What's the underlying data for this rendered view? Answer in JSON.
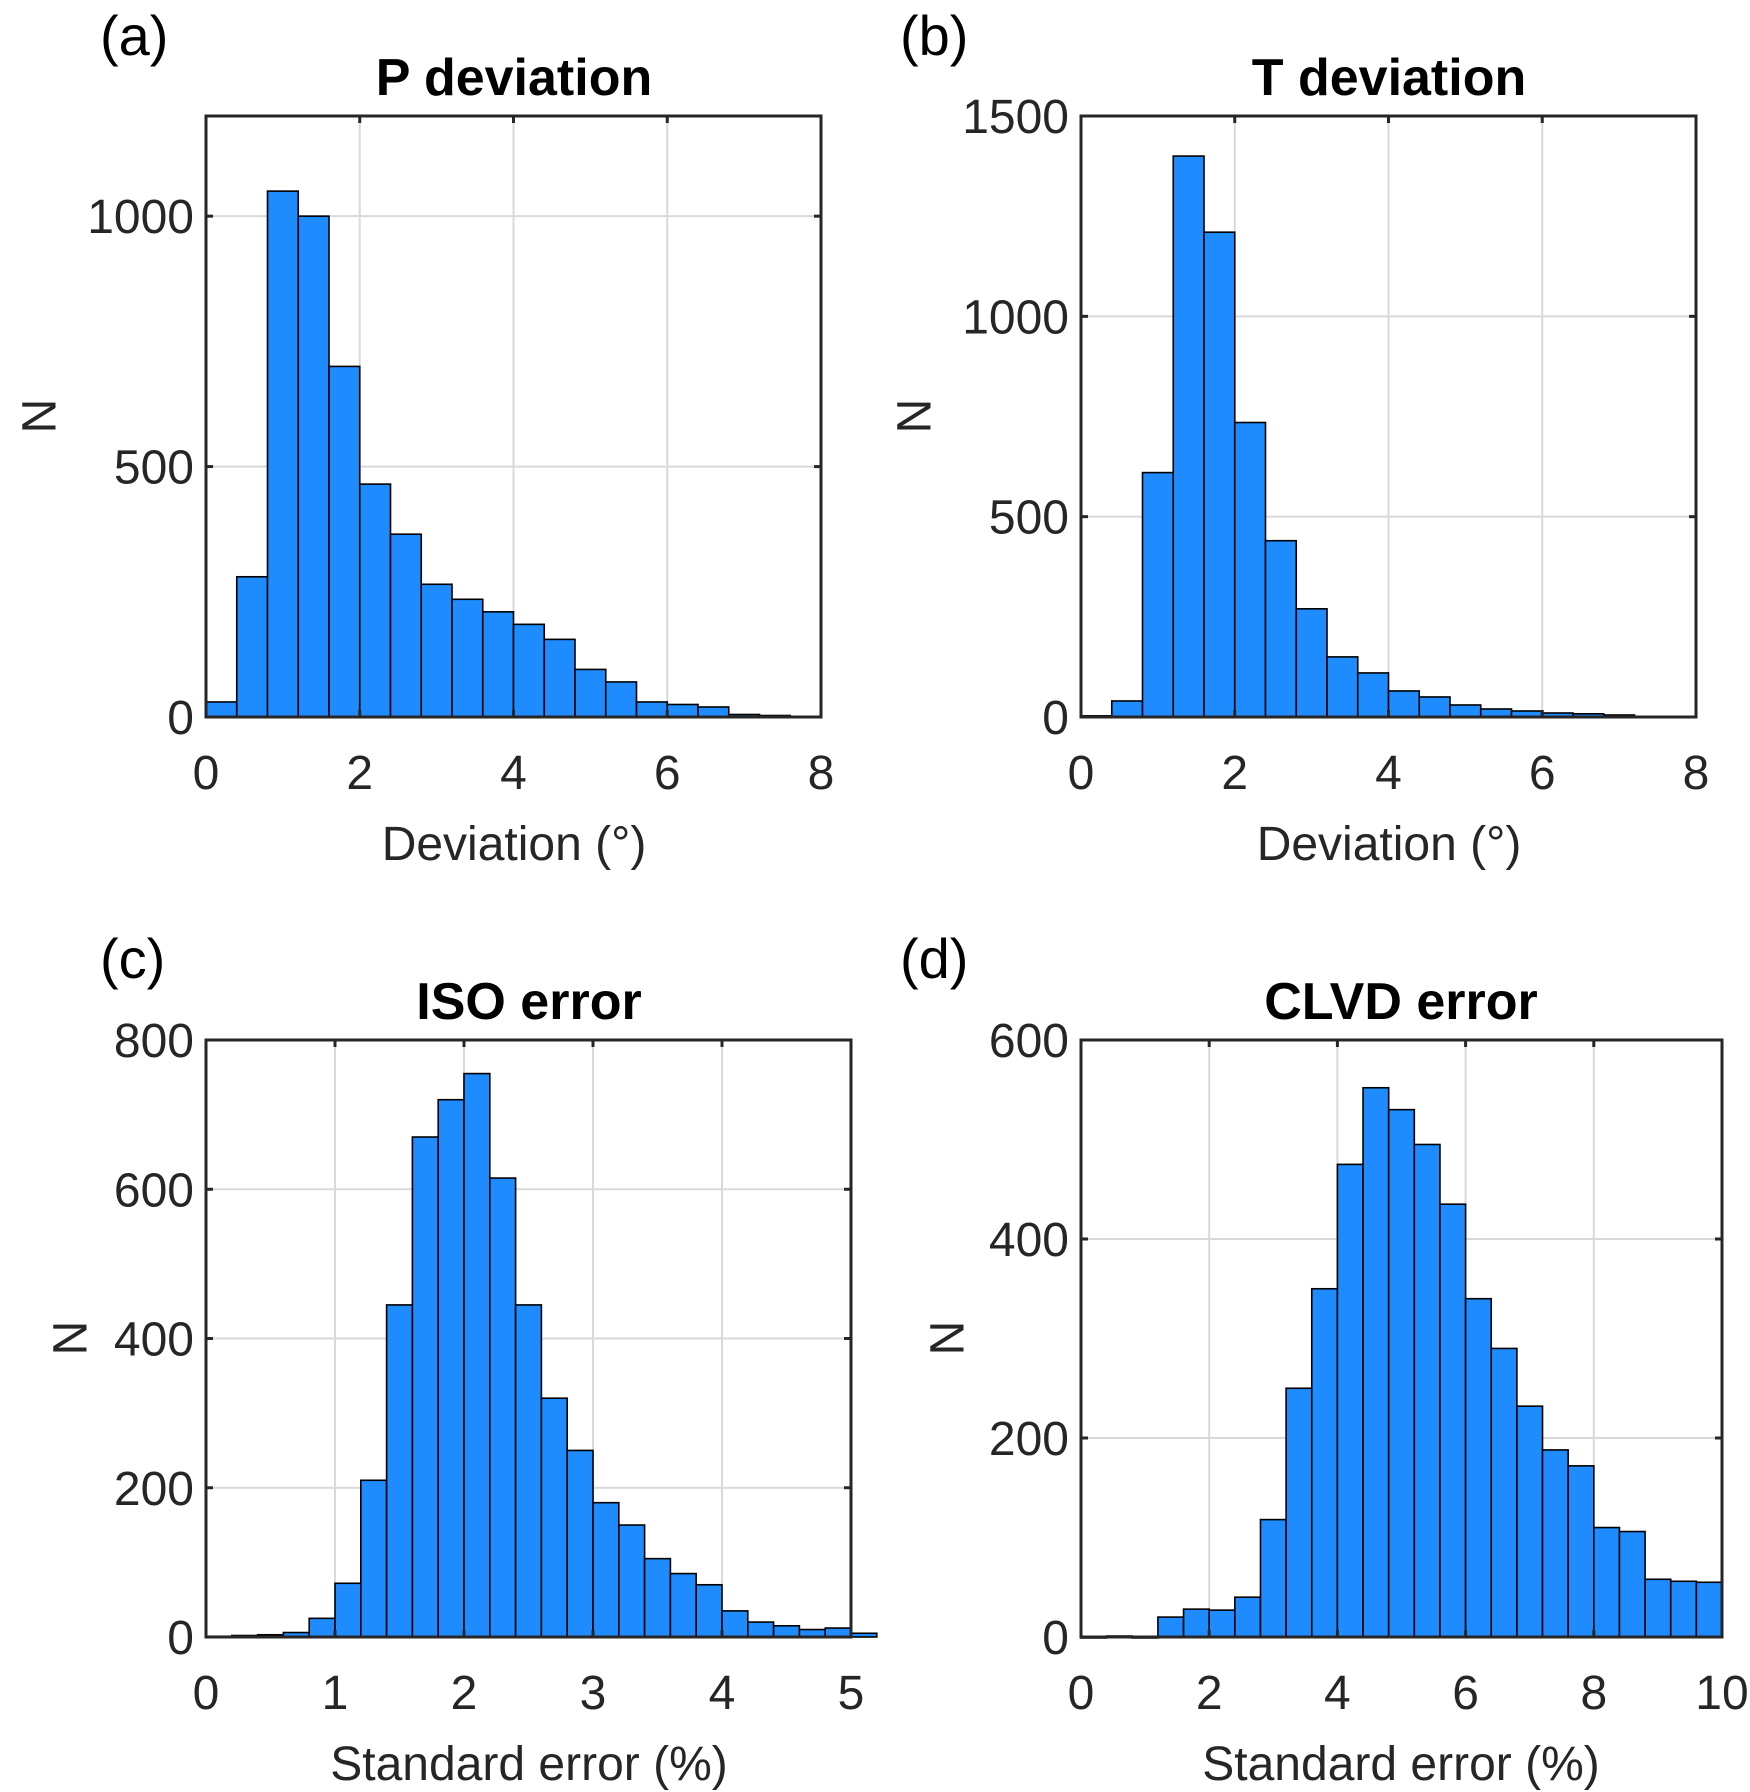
{
  "bar_color": "#1e8cff",
  "chart_data": [
    {
      "type": "bar",
      "panel_label": "(a)",
      "title": "P deviation",
      "xlabel": "Deviation (°)",
      "ylabel": "N",
      "xlim": [
        0,
        8
      ],
      "ylim": [
        0,
        1200
      ],
      "xticks": [
        0,
        2,
        4,
        6,
        8
      ],
      "yticks": [
        0,
        500,
        1000
      ],
      "grid": true,
      "bin_width": 0.4,
      "bin_start": 0.2,
      "values": [
        30,
        280,
        1050,
        1000,
        700,
        465,
        365,
        265,
        235,
        210,
        185,
        155,
        95,
        70,
        30,
        25,
        20,
        5,
        3
      ]
    },
    {
      "type": "bar",
      "panel_label": "(b)",
      "title": "T deviation",
      "xlabel": "Deviation (°)",
      "ylabel": "N",
      "xlim": [
        0,
        8
      ],
      "ylim": [
        0,
        1500
      ],
      "xticks": [
        0,
        2,
        4,
        6,
        8
      ],
      "yticks": [
        0,
        500,
        1000,
        1500
      ],
      "grid": true,
      "bin_width": 0.4,
      "bin_start": 0.2,
      "values": [
        3,
        40,
        610,
        1400,
        1210,
        735,
        440,
        270,
        150,
        110,
        65,
        50,
        30,
        20,
        15,
        10,
        8,
        5
      ]
    },
    {
      "type": "bar",
      "panel_label": "(c)",
      "title": "ISO error",
      "xlabel": "Standard error (%)",
      "ylabel": "N",
      "xlim": [
        0,
        5
      ],
      "ylim": [
        0,
        800
      ],
      "xticks": [
        0,
        1,
        2,
        3,
        4,
        5
      ],
      "yticks": [
        0,
        200,
        400,
        600,
        800
      ],
      "grid": true,
      "bin_width": 0.2,
      "bin_start": 0.1,
      "values": [
        1,
        2,
        3,
        6,
        25,
        72,
        210,
        445,
        670,
        720,
        755,
        615,
        445,
        320,
        250,
        180,
        150,
        105,
        85,
        70,
        35,
        20,
        15,
        10,
        12,
        5
      ]
    },
    {
      "type": "bar",
      "panel_label": "(d)",
      "title": "CLVD error",
      "xlabel": "Standard error (%)",
      "ylabel": "N",
      "xlim": [
        0,
        10
      ],
      "ylim": [
        0,
        600
      ],
      "xticks": [
        0,
        2,
        4,
        6,
        8,
        10
      ],
      "yticks": [
        0,
        200,
        400,
        600
      ],
      "grid": true,
      "bin_width": 0.4,
      "bin_start": 0.2,
      "values": [
        0,
        1,
        0,
        20,
        28,
        27,
        40,
        118,
        250,
        350,
        475,
        552,
        530,
        495,
        435,
        340,
        290,
        232,
        188,
        172,
        110,
        106,
        58,
        56,
        55
      ]
    }
  ]
}
